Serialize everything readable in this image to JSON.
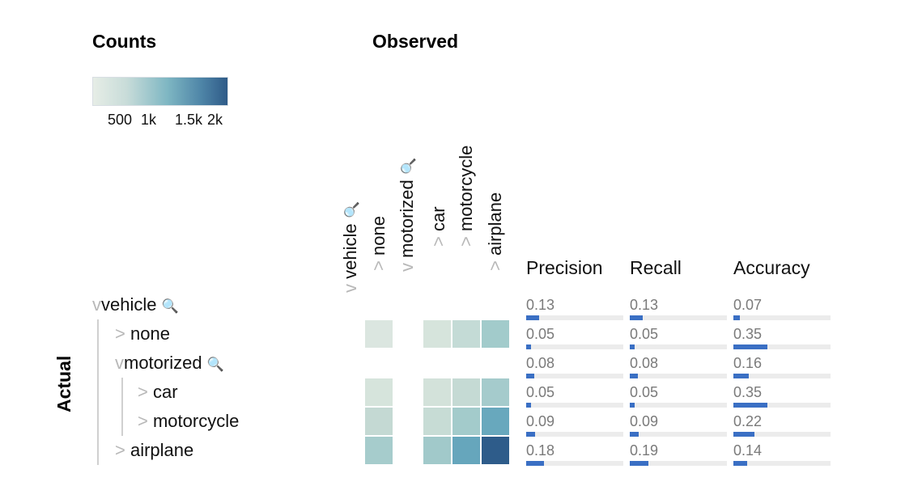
{
  "legend": {
    "title": "Counts",
    "ticks": [
      "500",
      "1k",
      "1.5k",
      "2k"
    ],
    "colors": [
      "#e6ede6",
      "#c8dcd9",
      "#7fb7c3",
      "#4f86a8",
      "#2f5b88"
    ]
  },
  "observed_title": "Observed",
  "actual_title": "Actual",
  "magnifier_icon": "🔍",
  "column_labels": [
    {
      "label": "vehicle",
      "caret": "v",
      "magnifier": true
    },
    {
      "label": "none",
      "caret": ">",
      "magnifier": false
    },
    {
      "label": "motorized",
      "caret": "v",
      "magnifier": true
    },
    {
      "label": "car",
      "caret": ">",
      "magnifier": false
    },
    {
      "label": "motorcycle",
      "caret": ">",
      "magnifier": false
    },
    {
      "label": "airplane",
      "caret": ">",
      "magnifier": false
    }
  ],
  "row_labels": [
    {
      "label": "vehicle",
      "caret": "v",
      "magnifier": true
    },
    {
      "label": "none",
      "caret": ">",
      "magnifier": false
    },
    {
      "label": "motorized",
      "caret": "v",
      "magnifier": true
    },
    {
      "label": "car",
      "caret": ">",
      "magnifier": false
    },
    {
      "label": "motorcycle",
      "caret": ">",
      "magnifier": false
    },
    {
      "label": "airplane",
      "caret": ">",
      "magnifier": false
    }
  ],
  "metrics": {
    "headers": [
      "Precision",
      "Recall",
      "Accuracy"
    ],
    "rows": [
      {
        "precision": "0.13",
        "recall": "0.13",
        "accuracy": "0.07"
      },
      {
        "precision": "0.05",
        "recall": "0.05",
        "accuracy": "0.35"
      },
      {
        "precision": "0.08",
        "recall": "0.08",
        "accuracy": "0.16"
      },
      {
        "precision": "0.05",
        "recall": "0.05",
        "accuracy": "0.35"
      },
      {
        "precision": "0.09",
        "recall": "0.09",
        "accuracy": "0.22"
      },
      {
        "precision": "0.18",
        "recall": "0.19",
        "accuracy": "0.14"
      }
    ]
  },
  "chart_data": {
    "type": "heatmap",
    "title": "Observed",
    "xlabel": "Observed",
    "ylabel": "Actual",
    "legend_title": "Counts",
    "color_range": [
      0,
      2000
    ],
    "visible_rows": [
      "none",
      "car",
      "motorcycle",
      "airplane"
    ],
    "visible_columns": [
      "none",
      "car",
      "motorcycle",
      "airplane"
    ],
    "cells": [
      {
        "row": "none",
        "col": "none",
        "color": "#dbe6e0"
      },
      {
        "row": "none",
        "col": "car",
        "color": "#d6e4dc"
      },
      {
        "row": "none",
        "col": "motorcycle",
        "color": "#c4dbd6"
      },
      {
        "row": "none",
        "col": "airplane",
        "color": "#a2cbcb"
      },
      {
        "row": "car",
        "col": "none",
        "color": "#d6e4dc"
      },
      {
        "row": "car",
        "col": "car",
        "color": "#d3e2da"
      },
      {
        "row": "car",
        "col": "motorcycle",
        "color": "#c5dad4"
      },
      {
        "row": "car",
        "col": "airplane",
        "color": "#a5cbcc"
      },
      {
        "row": "motorcycle",
        "col": "none",
        "color": "#c4d9d3"
      },
      {
        "row": "motorcycle",
        "col": "car",
        "color": "#c7dcd5"
      },
      {
        "row": "motorcycle",
        "col": "motorcycle",
        "color": "#a3cbcb"
      },
      {
        "row": "motorcycle",
        "col": "airplane",
        "color": "#68a8bd"
      },
      {
        "row": "airplane",
        "col": "none",
        "color": "#a6cccc"
      },
      {
        "row": "airplane",
        "col": "car",
        "color": "#a1c9ca"
      },
      {
        "row": "airplane",
        "col": "motorcycle",
        "color": "#66a6bc"
      },
      {
        "row": "airplane",
        "col": "airplane",
        "color": "#2e5c8a"
      }
    ]
  }
}
